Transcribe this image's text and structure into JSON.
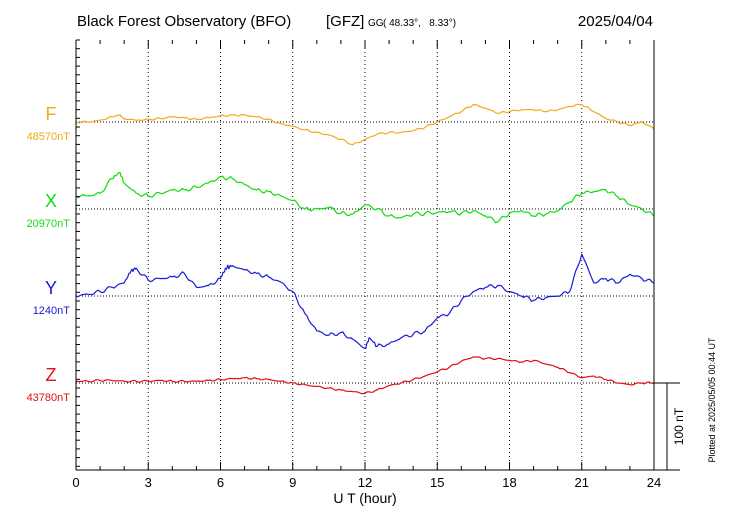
{
  "chart_data": {
    "type": "line",
    "title": "Black Forest Observatory (BFO)",
    "source_tag": "[GFZ]",
    "coord_system": "GG",
    "coordinates": "( 48.33°,   8.33°)",
    "date": "2025/04/04",
    "xlabel": "U T (hour)",
    "xlim": [
      0,
      24
    ],
    "x_ticks": [
      0,
      3,
      6,
      9,
      12,
      15,
      18,
      21,
      24
    ],
    "x_tick_labels": [
      "0",
      "3",
      "6",
      "9",
      "12",
      "15",
      "18",
      "21",
      "24"
    ],
    "grid": true,
    "scale_bar_label": "100 nT",
    "scale_bar_nT": 100,
    "plotted_note": "Plotted at 2025/05/05 00:44 UT",
    "series": [
      {
        "name": "F",
        "baseline_label": "48570nT",
        "baseline": 48570,
        "color": "#f2a91c",
        "x": [
          0,
          0.5,
          1,
          1.5,
          1.8,
          2,
          2.5,
          3,
          3.5,
          4,
          4.5,
          5,
          5.5,
          6,
          6.5,
          7,
          7.5,
          8,
          8.5,
          9,
          9.5,
          10,
          10.5,
          11,
          11.5,
          12,
          12.5,
          13,
          13.5,
          14,
          14.5,
          15,
          15.5,
          16,
          16.5,
          17,
          17.5,
          18,
          18.5,
          19,
          19.5,
          20,
          20.5,
          21,
          21.5,
          22,
          22.5,
          23,
          23.5,
          24
        ],
        "y": [
          0,
          0,
          2,
          6,
          8,
          4,
          2,
          3,
          4,
          6,
          5,
          3,
          5,
          7,
          8,
          8,
          6,
          3,
          -2,
          -5,
          -9,
          -12,
          -15,
          -20,
          -26,
          -20,
          -14,
          -12,
          -12,
          -10,
          -6,
          0,
          6,
          12,
          20,
          16,
          10,
          12,
          14,
          14,
          12,
          14,
          18,
          20,
          12,
          4,
          0,
          -4,
          0,
          -8
        ]
      },
      {
        "name": "X",
        "baseline_label": "20970nT",
        "baseline": 20970,
        "color": "#11dd11",
        "x": [
          0,
          0.5,
          1,
          1.5,
          1.8,
          2,
          2.5,
          3,
          3.5,
          4,
          4.5,
          5,
          5.5,
          6,
          6.5,
          7,
          7.5,
          8,
          8.5,
          9,
          9.5,
          10,
          10.5,
          11,
          11.5,
          12,
          12.5,
          13,
          13.5,
          14,
          14.5,
          15,
          15.5,
          16,
          16.5,
          17,
          17.5,
          18,
          18.5,
          19,
          19.5,
          20,
          20.5,
          21,
          21.5,
          22,
          22.5,
          23,
          23.5,
          24
        ],
        "y": [
          15,
          15,
          18,
          35,
          42,
          30,
          18,
          15,
          18,
          22,
          22,
          25,
          30,
          37,
          35,
          28,
          22,
          20,
          15,
          10,
          0,
          0,
          2,
          -5,
          -6,
          5,
          0,
          -8,
          -10,
          -6,
          -5,
          -4,
          -3,
          -5,
          -2,
          -8,
          -15,
          -5,
          -2,
          -8,
          -6,
          -2,
          8,
          18,
          20,
          22,
          14,
          5,
          0,
          -8
        ]
      },
      {
        "name": "Y",
        "baseline_label": "1240nT",
        "baseline": 1240,
        "color": "#1a1adb",
        "x": [
          0,
          0.5,
          1,
          1.5,
          2,
          2.3,
          2.5,
          3,
          3.5,
          4,
          4.5,
          5,
          5.5,
          6,
          6.2,
          6.5,
          7,
          7.5,
          8,
          8.5,
          9,
          9.5,
          10,
          10.5,
          11,
          11.5,
          12,
          12.2,
          12.5,
          13,
          13.5,
          14,
          14.5,
          15,
          15.5,
          16,
          16.5,
          17,
          17.5,
          18,
          18.5,
          19,
          19.5,
          20,
          20.5,
          21,
          21.5,
          22,
          22.5,
          23,
          23.5,
          24
        ],
        "y": [
          0,
          2,
          5,
          10,
          15,
          30,
          32,
          18,
          20,
          22,
          26,
          10,
          12,
          20,
          32,
          35,
          30,
          26,
          22,
          16,
          5,
          -20,
          -40,
          -45,
          -42,
          -50,
          -60,
          -48,
          -58,
          -55,
          -48,
          -44,
          -40,
          -25,
          -20,
          -5,
          5,
          10,
          12,
          5,
          0,
          -5,
          -2,
          0,
          5,
          48,
          15,
          20,
          15,
          25,
          20,
          15
        ]
      },
      {
        "name": "Z",
        "baseline_label": "43780nT",
        "baseline": 43780,
        "color": "#e01010",
        "x": [
          0,
          0.5,
          1,
          1.5,
          2,
          2.5,
          3,
          3.5,
          4,
          4.5,
          5,
          5.5,
          6,
          6.5,
          7,
          7.5,
          8,
          8.5,
          9,
          9.5,
          10,
          10.5,
          11,
          11.5,
          12,
          12.5,
          13,
          13.5,
          14,
          14.5,
          15,
          15.5,
          16,
          16.5,
          17,
          17.5,
          18,
          18.5,
          19,
          19.5,
          20,
          20.5,
          21,
          21.5,
          22,
          22.5,
          23,
          23.5,
          24
        ],
        "y": [
          2,
          2,
          3,
          3,
          2,
          2,
          2,
          3,
          2,
          2,
          2,
          3,
          4,
          5,
          6,
          5,
          4,
          2,
          0,
          -2,
          -4,
          -6,
          -8,
          -10,
          -12,
          -8,
          -3,
          0,
          4,
          8,
          13,
          18,
          25,
          30,
          28,
          28,
          26,
          24,
          26,
          22,
          18,
          12,
          6,
          8,
          4,
          0,
          -2,
          0,
          0
        ]
      }
    ]
  }
}
